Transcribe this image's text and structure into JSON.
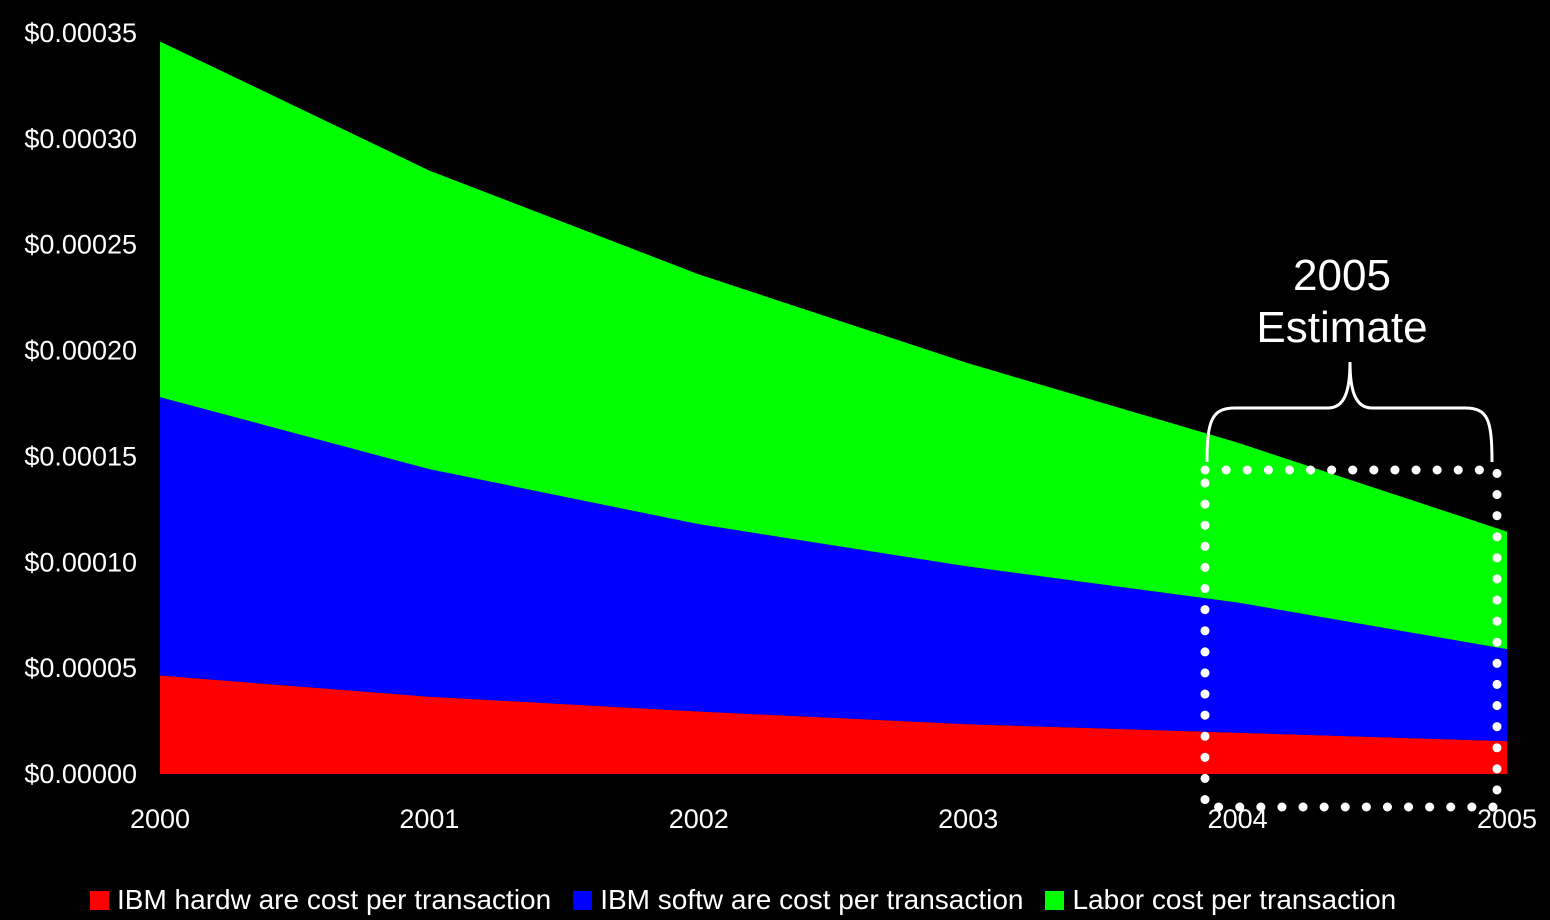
{
  "chart_data": {
    "type": "area",
    "stacked": true,
    "x": [
      "2000",
      "2001",
      "2002",
      "2003",
      "2004",
      "2005"
    ],
    "series": [
      {
        "name": "IBM hardw are cost per transaction",
        "color": "#ff0000",
        "values": [
          4.65e-05,
          3.65e-05,
          2.95e-05,
          2.35e-05,
          1.95e-05,
          1.55e-05
        ]
      },
      {
        "name": "IBM softw are cost per transaction",
        "color": "#0000ff",
        "values": [
          0.0001315,
          0.0001075,
          8.85e-05,
          7.45e-05,
          6.15e-05,
          4.35e-05
        ]
      },
      {
        "name": "Labor cost per transaction",
        "color": "#00ff00",
        "values": [
          0.000168,
          0.000141,
          0.000118,
          9.6e-05,
          7.55e-05,
          5.55e-05
        ]
      }
    ],
    "ylim": [
      0,
      0.00035
    ],
    "y_ticks": [
      "$0.00000",
      "$0.00005",
      "$0.00010",
      "$0.00015",
      "$0.00020",
      "$0.00025",
      "$0.00030",
      "$0.00035"
    ],
    "legend_position": "bottom",
    "background": "#000000",
    "annotation": {
      "lines": [
        "2005",
        "Estimate"
      ],
      "style": "brace over dotted white box around 2004-2005"
    }
  }
}
